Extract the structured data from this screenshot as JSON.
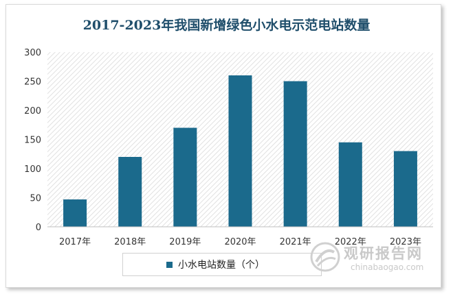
{
  "chart_data": {
    "type": "bar",
    "title": "2017-2023年我国新增绿色小水电示范电站数量",
    "categories": [
      "2017年",
      "2018年",
      "2019年",
      "2020年",
      "2021年",
      "2022年",
      "2023年"
    ],
    "series": [
      {
        "name": "小水电站数量（个）",
        "values": [
          47,
          120,
          170,
          260,
          250,
          145,
          130
        ]
      }
    ],
    "yticks": [
      "0",
      "50",
      "100",
      "150",
      "200",
      "250",
      "300"
    ],
    "ylim": [
      0,
      300
    ],
    "grid": false,
    "legend": "bottom",
    "bar_color": "#1b6a8c"
  },
  "watermark": {
    "name": "观研报告网",
    "url": "chinabaogao.com"
  }
}
